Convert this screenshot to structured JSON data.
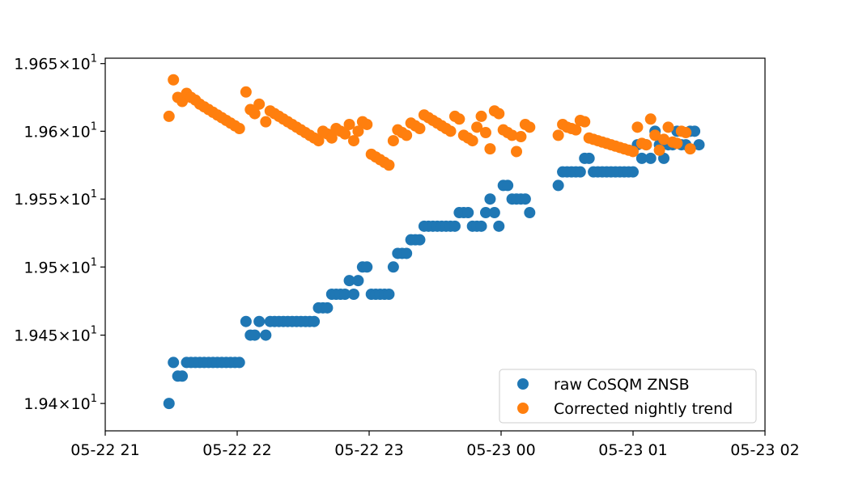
{
  "chart_data": {
    "type": "scatter",
    "title": "",
    "xlabel": "",
    "ylabel": "",
    "x_axis": {
      "type": "datetime",
      "range": [
        "2024-05-22T21:00",
        "2024-05-23T02:00"
      ],
      "ticks": [
        {
          "value": "2024-05-22T21:00",
          "label": "05-22 21"
        },
        {
          "value": "2024-05-22T22:00",
          "label": "05-22 22"
        },
        {
          "value": "2024-05-22T23:00",
          "label": "05-22 23"
        },
        {
          "value": "2024-05-23T00:00",
          "label": "05-23 00"
        },
        {
          "value": "2024-05-23T01:00",
          "label": "05-23 01"
        },
        {
          "value": "2024-05-23T02:00",
          "label": "05-23 02"
        }
      ]
    },
    "y_axis": {
      "scale": "log",
      "range": [
        19.38,
        19.654
      ],
      "ticks": [
        {
          "value": 19.4,
          "mantissa": "1.94",
          "exponent": "1"
        },
        {
          "value": 19.45,
          "mantissa": "1.945",
          "exponent": "1"
        },
        {
          "value": 19.5,
          "mantissa": "1.95",
          "exponent": "1"
        },
        {
          "value": 19.55,
          "mantissa": "1.955",
          "exponent": "1"
        },
        {
          "value": 19.6,
          "mantissa": "1.96",
          "exponent": "1"
        },
        {
          "value": 19.65,
          "mantissa": "1.965",
          "exponent": "1"
        }
      ]
    },
    "grid": false,
    "legend": {
      "position": "lower-right",
      "entries": [
        "raw CoSQM ZNSB",
        "Corrected nightly trend"
      ]
    },
    "series": [
      {
        "name": "raw CoSQM ZNSB",
        "color": "#1f77b4",
        "points": [
          [
            "2024-05-22T21:29",
            19.4
          ],
          [
            "2024-05-22T21:31",
            19.43
          ],
          [
            "2024-05-22T21:33",
            19.42
          ],
          [
            "2024-05-22T21:35",
            19.42
          ],
          [
            "2024-05-22T21:37",
            19.43
          ],
          [
            "2024-05-22T21:39",
            19.43
          ],
          [
            "2024-05-22T21:41",
            19.43
          ],
          [
            "2024-05-22T21:43",
            19.43
          ],
          [
            "2024-05-22T21:45",
            19.43
          ],
          [
            "2024-05-22T21:47",
            19.43
          ],
          [
            "2024-05-22T21:49",
            19.43
          ],
          [
            "2024-05-22T21:51",
            19.43
          ],
          [
            "2024-05-22T21:53",
            19.43
          ],
          [
            "2024-05-22T21:55",
            19.43
          ],
          [
            "2024-05-22T21:57",
            19.43
          ],
          [
            "2024-05-22T21:59",
            19.43
          ],
          [
            "2024-05-22T22:01",
            19.43
          ],
          [
            "2024-05-22T22:04",
            19.46
          ],
          [
            "2024-05-22T22:06",
            19.45
          ],
          [
            "2024-05-22T22:08",
            19.45
          ],
          [
            "2024-05-22T22:10",
            19.46
          ],
          [
            "2024-05-22T22:13",
            19.45
          ],
          [
            "2024-05-22T22:15",
            19.46
          ],
          [
            "2024-05-22T22:17",
            19.46
          ],
          [
            "2024-05-22T22:19",
            19.46
          ],
          [
            "2024-05-22T22:21",
            19.46
          ],
          [
            "2024-05-22T22:23",
            19.46
          ],
          [
            "2024-05-22T22:25",
            19.46
          ],
          [
            "2024-05-22T22:27",
            19.46
          ],
          [
            "2024-05-22T22:29",
            19.46
          ],
          [
            "2024-05-22T22:31",
            19.46
          ],
          [
            "2024-05-22T22:33",
            19.46
          ],
          [
            "2024-05-22T22:35",
            19.46
          ],
          [
            "2024-05-22T22:37",
            19.47
          ],
          [
            "2024-05-22T22:39",
            19.47
          ],
          [
            "2024-05-22T22:41",
            19.47
          ],
          [
            "2024-05-22T22:43",
            19.48
          ],
          [
            "2024-05-22T22:45",
            19.48
          ],
          [
            "2024-05-22T22:47",
            19.48
          ],
          [
            "2024-05-22T22:49",
            19.48
          ],
          [
            "2024-05-22T22:51",
            19.49
          ],
          [
            "2024-05-22T22:53",
            19.48
          ],
          [
            "2024-05-22T22:55",
            19.49
          ],
          [
            "2024-05-22T22:57",
            19.5
          ],
          [
            "2024-05-22T22:59",
            19.5
          ],
          [
            "2024-05-22T23:01",
            19.48
          ],
          [
            "2024-05-22T23:03",
            19.48
          ],
          [
            "2024-05-22T23:05",
            19.48
          ],
          [
            "2024-05-22T23:07",
            19.48
          ],
          [
            "2024-05-22T23:09",
            19.48
          ],
          [
            "2024-05-22T23:11",
            19.5
          ],
          [
            "2024-05-22T23:13",
            19.51
          ],
          [
            "2024-05-22T23:15",
            19.51
          ],
          [
            "2024-05-22T23:17",
            19.51
          ],
          [
            "2024-05-22T23:19",
            19.52
          ],
          [
            "2024-05-22T23:21",
            19.52
          ],
          [
            "2024-05-22T23:23",
            19.52
          ],
          [
            "2024-05-22T23:25",
            19.53
          ],
          [
            "2024-05-22T23:27",
            19.53
          ],
          [
            "2024-05-22T23:29",
            19.53
          ],
          [
            "2024-05-22T23:31",
            19.53
          ],
          [
            "2024-05-22T23:33",
            19.53
          ],
          [
            "2024-05-22T23:35",
            19.53
          ],
          [
            "2024-05-22T23:37",
            19.53
          ],
          [
            "2024-05-22T23:39",
            19.53
          ],
          [
            "2024-05-22T23:41",
            19.54
          ],
          [
            "2024-05-22T23:43",
            19.54
          ],
          [
            "2024-05-22T23:45",
            19.54
          ],
          [
            "2024-05-22T23:47",
            19.53
          ],
          [
            "2024-05-22T23:49",
            19.53
          ],
          [
            "2024-05-22T23:51",
            19.53
          ],
          [
            "2024-05-22T23:53",
            19.54
          ],
          [
            "2024-05-22T23:55",
            19.55
          ],
          [
            "2024-05-22T23:57",
            19.54
          ],
          [
            "2024-05-22T23:59",
            19.53
          ],
          [
            "2024-05-23T00:01",
            19.56
          ],
          [
            "2024-05-23T00:03",
            19.56
          ],
          [
            "2024-05-23T00:05",
            19.55
          ],
          [
            "2024-05-23T00:07",
            19.55
          ],
          [
            "2024-05-23T00:09",
            19.55
          ],
          [
            "2024-05-23T00:11",
            19.55
          ],
          [
            "2024-05-23T00:13",
            19.54
          ],
          [
            "2024-05-23T00:26",
            19.56
          ],
          [
            "2024-05-23T00:28",
            19.57
          ],
          [
            "2024-05-23T00:30",
            19.57
          ],
          [
            "2024-05-23T00:32",
            19.57
          ],
          [
            "2024-05-23T00:34",
            19.57
          ],
          [
            "2024-05-23T00:36",
            19.57
          ],
          [
            "2024-05-23T00:38",
            19.58
          ],
          [
            "2024-05-23T00:40",
            19.58
          ],
          [
            "2024-05-23T00:42",
            19.57
          ],
          [
            "2024-05-23T00:44",
            19.57
          ],
          [
            "2024-05-23T00:46",
            19.57
          ],
          [
            "2024-05-23T00:48",
            19.57
          ],
          [
            "2024-05-23T00:50",
            19.57
          ],
          [
            "2024-05-23T00:52",
            19.57
          ],
          [
            "2024-05-23T00:54",
            19.57
          ],
          [
            "2024-05-23T00:56",
            19.57
          ],
          [
            "2024-05-23T00:58",
            19.57
          ],
          [
            "2024-05-23T01:00",
            19.57
          ],
          [
            "2024-05-23T01:02",
            19.59
          ],
          [
            "2024-05-23T01:04",
            19.58
          ],
          [
            "2024-05-23T01:06",
            19.59
          ],
          [
            "2024-05-23T01:08",
            19.58
          ],
          [
            "2024-05-23T01:10",
            19.6
          ],
          [
            "2024-05-23T01:12",
            19.59
          ],
          [
            "2024-05-23T01:14",
            19.58
          ],
          [
            "2024-05-23T01:16",
            19.59
          ],
          [
            "2024-05-23T01:18",
            19.59
          ],
          [
            "2024-05-23T01:20",
            19.6
          ],
          [
            "2024-05-23T01:22",
            19.59
          ],
          [
            "2024-05-23T01:24",
            19.59
          ],
          [
            "2024-05-23T01:26",
            19.6
          ],
          [
            "2024-05-23T01:28",
            19.6
          ],
          [
            "2024-05-23T01:30",
            19.59
          ]
        ]
      },
      {
        "name": "Corrected nightly trend",
        "color": "#ff7f0e",
        "points": [
          [
            "2024-05-22T21:29",
            19.611
          ],
          [
            "2024-05-22T21:31",
            19.638
          ],
          [
            "2024-05-22T21:33",
            19.625
          ],
          [
            "2024-05-22T21:35",
            19.622
          ],
          [
            "2024-05-22T21:37",
            19.628
          ],
          [
            "2024-05-22T21:39",
            19.625
          ],
          [
            "2024-05-22T21:41",
            19.623
          ],
          [
            "2024-05-22T21:43",
            19.62
          ],
          [
            "2024-05-22T21:45",
            19.618
          ],
          [
            "2024-05-22T21:47",
            19.616
          ],
          [
            "2024-05-22T21:49",
            19.614
          ],
          [
            "2024-05-22T21:51",
            19.612
          ],
          [
            "2024-05-22T21:53",
            19.61
          ],
          [
            "2024-05-22T21:55",
            19.608
          ],
          [
            "2024-05-22T21:57",
            19.606
          ],
          [
            "2024-05-22T21:59",
            19.604
          ],
          [
            "2024-05-22T22:01",
            19.602
          ],
          [
            "2024-05-22T22:04",
            19.629
          ],
          [
            "2024-05-22T22:06",
            19.616
          ],
          [
            "2024-05-22T22:08",
            19.613
          ],
          [
            "2024-05-22T22:10",
            19.62
          ],
          [
            "2024-05-22T22:13",
            19.607
          ],
          [
            "2024-05-22T22:15",
            19.615
          ],
          [
            "2024-05-22T22:17",
            19.613
          ],
          [
            "2024-05-22T22:19",
            19.611
          ],
          [
            "2024-05-22T22:21",
            19.609
          ],
          [
            "2024-05-22T22:23",
            19.607
          ],
          [
            "2024-05-22T22:25",
            19.605
          ],
          [
            "2024-05-22T22:27",
            19.603
          ],
          [
            "2024-05-22T22:29",
            19.601
          ],
          [
            "2024-05-22T22:31",
            19.599
          ],
          [
            "2024-05-22T22:33",
            19.597
          ],
          [
            "2024-05-22T22:35",
            19.595
          ],
          [
            "2024-05-22T22:37",
            19.593
          ],
          [
            "2024-05-22T22:39",
            19.6
          ],
          [
            "2024-05-22T22:41",
            19.598
          ],
          [
            "2024-05-22T22:43",
            19.595
          ],
          [
            "2024-05-22T22:45",
            19.602
          ],
          [
            "2024-05-22T22:47",
            19.6
          ],
          [
            "2024-05-22T22:49",
            19.598
          ],
          [
            "2024-05-22T22:51",
            19.605
          ],
          [
            "2024-05-22T22:53",
            19.593
          ],
          [
            "2024-05-22T22:55",
            19.6
          ],
          [
            "2024-05-22T22:57",
            19.607
          ],
          [
            "2024-05-22T22:59",
            19.605
          ],
          [
            "2024-05-22T23:01",
            19.583
          ],
          [
            "2024-05-22T23:03",
            19.581
          ],
          [
            "2024-05-22T23:05",
            19.579
          ],
          [
            "2024-05-22T23:07",
            19.577
          ],
          [
            "2024-05-22T23:09",
            19.575
          ],
          [
            "2024-05-22T23:11",
            19.593
          ],
          [
            "2024-05-22T23:13",
            19.601
          ],
          [
            "2024-05-22T23:15",
            19.599
          ],
          [
            "2024-05-22T23:17",
            19.597
          ],
          [
            "2024-05-22T23:19",
            19.606
          ],
          [
            "2024-05-22T23:21",
            19.604
          ],
          [
            "2024-05-22T23:23",
            19.602
          ],
          [
            "2024-05-22T23:25",
            19.612
          ],
          [
            "2024-05-22T23:27",
            19.61
          ],
          [
            "2024-05-22T23:29",
            19.608
          ],
          [
            "2024-05-22T23:31",
            19.606
          ],
          [
            "2024-05-22T23:33",
            19.604
          ],
          [
            "2024-05-22T23:35",
            19.602
          ],
          [
            "2024-05-22T23:37",
            19.6
          ],
          [
            "2024-05-22T23:39",
            19.611
          ],
          [
            "2024-05-22T23:41",
            19.609
          ],
          [
            "2024-05-22T23:43",
            19.597
          ],
          [
            "2024-05-22T23:45",
            19.595
          ],
          [
            "2024-05-22T23:47",
            19.593
          ],
          [
            "2024-05-22T23:49",
            19.603
          ],
          [
            "2024-05-22T23:51",
            19.611
          ],
          [
            "2024-05-22T23:53",
            19.599
          ],
          [
            "2024-05-22T23:55",
            19.587
          ],
          [
            "2024-05-22T23:57",
            19.615
          ],
          [
            "2024-05-22T23:59",
            19.613
          ],
          [
            "2024-05-23T00:01",
            19.601
          ],
          [
            "2024-05-23T00:03",
            19.599
          ],
          [
            "2024-05-23T00:05",
            19.597
          ],
          [
            "2024-05-23T00:07",
            19.585
          ],
          [
            "2024-05-23T00:09",
            19.596
          ],
          [
            "2024-05-23T00:11",
            19.605
          ],
          [
            "2024-05-23T00:13",
            19.603
          ],
          [
            "2024-05-23T00:26",
            19.597
          ],
          [
            "2024-05-23T00:28",
            19.605
          ],
          [
            "2024-05-23T00:30",
            19.603
          ],
          [
            "2024-05-23T00:32",
            19.602
          ],
          [
            "2024-05-23T00:34",
            19.601
          ],
          [
            "2024-05-23T00:36",
            19.608
          ],
          [
            "2024-05-23T00:38",
            19.607
          ],
          [
            "2024-05-23T00:40",
            19.595
          ],
          [
            "2024-05-23T00:42",
            19.594
          ],
          [
            "2024-05-23T00:44",
            19.593
          ],
          [
            "2024-05-23T00:46",
            19.592
          ],
          [
            "2024-05-23T00:48",
            19.591
          ],
          [
            "2024-05-23T00:50",
            19.59
          ],
          [
            "2024-05-23T00:52",
            19.589
          ],
          [
            "2024-05-23T00:54",
            19.588
          ],
          [
            "2024-05-23T00:56",
            19.587
          ],
          [
            "2024-05-23T00:58",
            19.586
          ],
          [
            "2024-05-23T01:00",
            19.585
          ],
          [
            "2024-05-23T01:02",
            19.603
          ],
          [
            "2024-05-23T01:04",
            19.591
          ],
          [
            "2024-05-23T01:06",
            19.59
          ],
          [
            "2024-05-23T01:08",
            19.609
          ],
          [
            "2024-05-23T01:10",
            19.597
          ],
          [
            "2024-05-23T01:12",
            19.586
          ],
          [
            "2024-05-23T01:14",
            19.594
          ],
          [
            "2024-05-23T01:16",
            19.603
          ],
          [
            "2024-05-23T01:18",
            19.592
          ],
          [
            "2024-05-23T01:20",
            19.591
          ],
          [
            "2024-05-23T01:22",
            19.6
          ],
          [
            "2024-05-23T01:24",
            19.599
          ],
          [
            "2024-05-23T01:26",
            19.587
          ]
        ]
      }
    ]
  }
}
